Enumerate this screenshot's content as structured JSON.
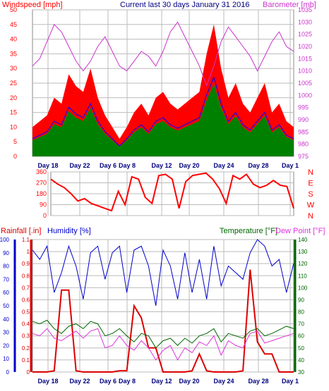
{
  "header": {
    "left_title": "Windspeed [mph]",
    "center_title": "Current last 30 days January 31 2016",
    "right_title": "Barometer [mb]"
  },
  "colors": {
    "wind": "#ff0000",
    "wind_avg": "#0000ff",
    "wind_green": "#008000",
    "barometer": "#cc33cc",
    "direction": "#ff0000",
    "rain": "#dd0000",
    "humidity": "#0000cc",
    "temperature": "#006600",
    "dewpoint": "#dd33dd",
    "grid": "#bbbbbb",
    "day_labels": "#000080"
  },
  "chart_data": [
    {
      "type": "line",
      "panel": "wind-barometer",
      "title": "Current last 30 days January 31 2016",
      "ylabel": "Windspeed [mph]",
      "y2label": "Barometer [mb]",
      "ylim": [
        0,
        50
      ],
      "y2lim": [
        975,
        1035
      ],
      "yticks": [
        0,
        5,
        10,
        15,
        20,
        25,
        30,
        35,
        40,
        45,
        50
      ],
      "y2ticks": [
        975,
        980,
        985,
        990,
        995,
        1000,
        1005,
        1010,
        1015,
        1020,
        1025,
        1030,
        1035
      ],
      "x_day_labels": [
        "Day 18",
        "Day 22",
        "Day 6",
        "Day 8",
        "Day 12",
        "Day 20",
        "Day 24",
        "Day 28",
        "Day 1"
      ],
      "series": [
        {
          "name": "Windspeed",
          "values": [
            10,
            12,
            14,
            20,
            18,
            28,
            24,
            22,
            30,
            20,
            14,
            10,
            6,
            10,
            15,
            18,
            14,
            20,
            22,
            18,
            16,
            18,
            20,
            22,
            35,
            45,
            30,
            20,
            25,
            18,
            15,
            20,
            25,
            15,
            18,
            12,
            10
          ]
        },
        {
          "name": "Barometer",
          "values": [
            1012,
            1015,
            1022,
            1029,
            1026,
            1020,
            1014,
            1010,
            1014,
            1020,
            1024,
            1018,
            1012,
            1010,
            1014,
            1018,
            1016,
            1012,
            1018,
            1026,
            1030,
            1024,
            1018,
            1012,
            1004,
            1012,
            1022,
            1028,
            1024,
            1020,
            1016,
            1010,
            1016,
            1022,
            1026,
            1020,
            1018
          ]
        }
      ]
    },
    {
      "type": "line",
      "panel": "wind-direction",
      "ylim": [
        0,
        360
      ],
      "yticks": [
        0,
        90,
        180,
        270,
        360
      ],
      "y2ticks": [
        "N",
        "W",
        "S",
        "E",
        "N"
      ],
      "series": [
        {
          "name": "Direction",
          "values": [
            300,
            260,
            230,
            180,
            120,
            140,
            100,
            80,
            60,
            40,
            200,
            90,
            320,
            300,
            150,
            100,
            330,
            340,
            300,
            60,
            280,
            330,
            340,
            350,
            300,
            220,
            100,
            330,
            300,
            340,
            260,
            230,
            250,
            290,
            250,
            240,
            60
          ]
        }
      ]
    },
    {
      "type": "line",
      "panel": "rain-humidity-temperature",
      "ylabel": "Rainfall [.in]",
      "ylabel2": "Humidity [%]",
      "y3label": "Temperature [°F]",
      "y4label": "Dew Point [°F]",
      "rain_ylim": [
        0,
        1.1
      ],
      "rain_yticks": [
        0,
        0.1,
        0.2,
        0.3,
        0.4,
        0.5,
        0.6,
        0.7,
        0.8,
        0.9,
        1,
        1.1
      ],
      "humidity_ylim": [
        0,
        100
      ],
      "humidity_yticks": [
        0,
        10,
        20,
        30,
        40,
        50,
        60,
        70,
        80,
        90,
        100
      ],
      "temp_ylim": [
        30,
        140
      ],
      "temp_yticks": [
        30,
        40,
        50,
        60,
        70,
        80,
        90,
        100,
        110,
        120,
        130,
        140
      ],
      "series": [
        {
          "name": "Rainfall",
          "values": [
            0,
            0,
            0,
            0.01,
            0.68,
            0.68,
            0.01,
            0,
            0,
            0,
            0,
            0,
            0.01,
            0.01,
            0.55,
            0.45,
            0.2,
            0.2,
            0,
            0,
            0,
            0,
            0.01,
            0.15,
            0.01,
            0,
            0,
            0,
            0,
            0.01,
            0.85,
            0.25,
            0.15,
            0.15,
            0,
            0,
            0
          ]
        },
        {
          "name": "Humidity",
          "values": [
            92,
            85,
            95,
            60,
            75,
            95,
            80,
            55,
            90,
            95,
            70,
            90,
            95,
            60,
            92,
            95,
            80,
            50,
            92,
            80,
            55,
            90,
            60,
            85,
            55,
            95,
            65,
            80,
            75,
            70,
            90,
            100,
            95,
            80,
            85,
            60,
            82
          ]
        },
        {
          "name": "Temperature",
          "values": [
            72,
            70,
            73,
            66,
            62,
            68,
            70,
            66,
            72,
            70,
            60,
            62,
            66,
            60,
            55,
            62,
            60,
            50,
            56,
            58,
            52,
            58,
            54,
            60,
            62,
            66,
            55,
            62,
            60,
            58,
            64,
            66,
            60,
            62,
            65,
            68,
            66
          ]
        },
        {
          "name": "Dew Point",
          "values": [
            62,
            60,
            66,
            58,
            56,
            60,
            64,
            58,
            64,
            66,
            50,
            52,
            60,
            52,
            48,
            56,
            50,
            40,
            48,
            52,
            40,
            50,
            46,
            55,
            52,
            60,
            44,
            56,
            52,
            50,
            62,
            64,
            54,
            56,
            58,
            60,
            62
          ]
        }
      ]
    }
  ]
}
